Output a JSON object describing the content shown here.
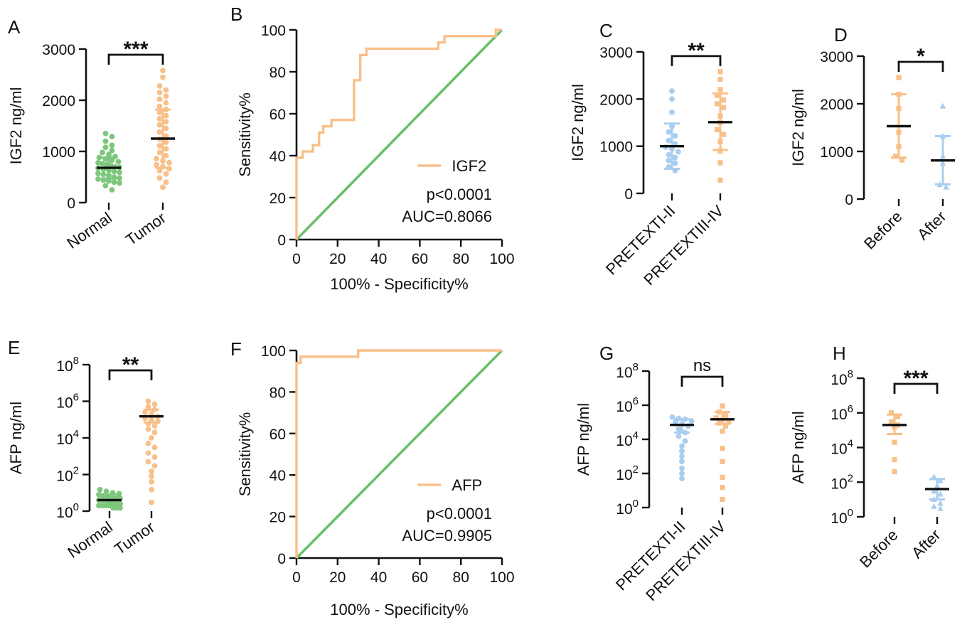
{
  "colors": {
    "orange": "#f8c08a",
    "green": "#7dc77c",
    "blue": "#a9cdef",
    "black": "#111111",
    "diag": "#6bbf6b"
  },
  "chart_data": [
    {
      "id": "A",
      "type": "scatter",
      "letter": "A",
      "ylabel": "IGF2 ng/ml",
      "yscale": "linear",
      "ylim": [
        0,
        3000
      ],
      "yticks": [
        0,
        1000,
        2000,
        3000
      ],
      "yticklabels": [
        "0",
        "1000",
        "2000",
        "3000"
      ],
      "categories": [
        "Normal",
        "Tumor"
      ],
      "significance": "***",
      "series": [
        {
          "name": "Normal",
          "color": "green",
          "shape": "circle",
          "mean": 680,
          "sd_low": 470,
          "sd_high": 880,
          "values": [
            1350,
            1290,
            1200,
            1120,
            1080,
            1020,
            980,
            940,
            900,
            880,
            850,
            830,
            800,
            780,
            760,
            740,
            720,
            700,
            690,
            670,
            650,
            630,
            610,
            590,
            570,
            550,
            530,
            500,
            480,
            460,
            440,
            420,
            400,
            380,
            330,
            250
          ]
        },
        {
          "name": "Tumor",
          "color": "orange",
          "shape": "circle",
          "mean": 1250,
          "sd_low": 680,
          "sd_high": 1820,
          "values": [
            2580,
            2450,
            2280,
            2200,
            2150,
            2080,
            2020,
            1950,
            1880,
            1820,
            1760,
            1700,
            1640,
            1580,
            1520,
            1450,
            1380,
            1300,
            1240,
            1180,
            1110,
            1050,
            980,
            920,
            860,
            820,
            780,
            740,
            700,
            660,
            620,
            560,
            480,
            400,
            300
          ]
        }
      ]
    },
    {
      "id": "B",
      "type": "line",
      "letter": "B",
      "xlabel": "100% - Specificity%",
      "ylabel": "Sensitivity%",
      "xlim": [
        0,
        100
      ],
      "ylim": [
        0,
        100
      ],
      "xticks": [
        0,
        20,
        40,
        60,
        80,
        100
      ],
      "xticklabels": [
        "0",
        "20",
        "40",
        "60",
        "80",
        "100"
      ],
      "yticks": [
        0,
        20,
        40,
        60,
        80,
        100
      ],
      "yticklabels": [
        "0",
        "20",
        "40",
        "60",
        "80",
        "100"
      ],
      "legend": "IGF2",
      "pvalue": "p<0.0001",
      "auc": "AUC=0.8066",
      "roc": [
        [
          0,
          0
        ],
        [
          0,
          39
        ],
        [
          3,
          39
        ],
        [
          3,
          42
        ],
        [
          8,
          42
        ],
        [
          8,
          45
        ],
        [
          11,
          45
        ],
        [
          11,
          51
        ],
        [
          13,
          51
        ],
        [
          13,
          54
        ],
        [
          17,
          54
        ],
        [
          17,
          57
        ],
        [
          28,
          57
        ],
        [
          28,
          76
        ],
        [
          31,
          76
        ],
        [
          31,
          88
        ],
        [
          34,
          88
        ],
        [
          34,
          91
        ],
        [
          69,
          91
        ],
        [
          69,
          94
        ],
        [
          72,
          94
        ],
        [
          72,
          97
        ],
        [
          97,
          97
        ],
        [
          97,
          100
        ],
        [
          100,
          100
        ]
      ],
      "diagonal": [
        [
          0,
          0
        ],
        [
          100,
          100
        ]
      ]
    },
    {
      "id": "C",
      "type": "scatter",
      "letter": "C",
      "ylabel": "IGF2 ng/ml",
      "yscale": "linear",
      "ylim": [
        0,
        3000
      ],
      "yticks": [
        0,
        1000,
        2000,
        3000
      ],
      "yticklabels": [
        "0",
        "1000",
        "2000",
        "3000"
      ],
      "categories": [
        "PRETEXTI-II",
        "PRETEXTIII-IV"
      ],
      "significance": "**",
      "series": [
        {
          "name": "PRETEXTI-II",
          "color": "blue",
          "shape": "circle",
          "mean": 1000,
          "sd_low": 520,
          "sd_high": 1480,
          "values": [
            2170,
            2000,
            1720,
            1420,
            1300,
            1220,
            1120,
            1050,
            980,
            940,
            880,
            820,
            760,
            700,
            640,
            560,
            480
          ]
        },
        {
          "name": "PRETEXTIII-IV",
          "color": "orange",
          "shape": "square",
          "mean": 1510,
          "sd_low": 920,
          "sd_high": 2120,
          "values": [
            2580,
            2420,
            2200,
            2080,
            1980,
            1900,
            1820,
            1640,
            1500,
            1350,
            1250,
            1100,
            900,
            650,
            280
          ]
        }
      ]
    },
    {
      "id": "D",
      "type": "scatter",
      "letter": "D",
      "ylabel": "IGF2 ng/ml",
      "yscale": "linear",
      "ylim": [
        0,
        3000
      ],
      "yticks": [
        0,
        1000,
        2000,
        3000
      ],
      "yticklabels": [
        "0",
        "1000",
        "2000",
        "3000"
      ],
      "categories": [
        "Before",
        "After"
      ],
      "significance": "*",
      "series": [
        {
          "name": "Before",
          "color": "orange",
          "shape": "square",
          "mean": 1530,
          "sd_low": 870,
          "sd_high": 2200,
          "values": [
            2550,
            2200,
            1900,
            1400,
            1100,
            900,
            820
          ]
        },
        {
          "name": "After",
          "color": "blue",
          "shape": "triangle",
          "mean": 810,
          "sd_low": 310,
          "sd_high": 1320,
          "values": [
            1950,
            1320,
            900,
            750,
            300,
            250
          ]
        }
      ]
    },
    {
      "id": "E",
      "type": "scatter",
      "letter": "E",
      "ylabel": "AFP ng/ml",
      "yscale": "log",
      "ylim": [
        1,
        100000000
      ],
      "yticks": [
        1,
        100,
        10000,
        1000000,
        100000000
      ],
      "yticklabels": [
        {
          "base": "10",
          "exp": "0"
        },
        {
          "base": "10",
          "exp": "2"
        },
        {
          "base": "10",
          "exp": "4"
        },
        {
          "base": "10",
          "exp": "6"
        },
        {
          "base": "10",
          "exp": "8"
        }
      ],
      "categories": [
        "Normal",
        "Tumor"
      ],
      "significance": "**",
      "series": [
        {
          "name": "Normal",
          "color": "green",
          "shape": "circle",
          "mean": 4,
          "sd_low": 2,
          "sd_high": 8,
          "values": [
            15,
            12,
            10,
            9,
            8,
            7,
            6,
            6,
            5,
            5,
            5,
            4,
            4,
            4,
            4,
            3,
            3,
            3,
            3,
            3,
            2.5,
            2.5,
            2,
            2,
            2,
            2,
            1.5,
            1.5,
            1.5
          ]
        },
        {
          "name": "Tumor",
          "color": "orange",
          "shape": "circle",
          "mean": 150000,
          "sd_low": 70000,
          "sd_high": 350000,
          "values": [
            1000000,
            700000,
            500000,
            350000,
            250000,
            200000,
            150000,
            120000,
            100000,
            80000,
            60000,
            45000,
            30000,
            20000,
            10000,
            5000,
            3000,
            1500,
            900,
            500,
            300,
            150,
            80,
            40,
            15,
            3
          ]
        }
      ]
    },
    {
      "id": "F",
      "type": "line",
      "letter": "F",
      "xlabel": "100% - Specificity%",
      "ylabel": "Sensitivity%",
      "xlim": [
        0,
        100
      ],
      "ylim": [
        0,
        100
      ],
      "xticks": [
        0,
        20,
        40,
        60,
        80,
        100
      ],
      "xticklabels": [
        "0",
        "20",
        "40",
        "60",
        "80",
        "100"
      ],
      "yticks": [
        0,
        20,
        40,
        60,
        80,
        100
      ],
      "yticklabels": [
        "0",
        "20",
        "40",
        "60",
        "80",
        "100"
      ],
      "legend": "AFP",
      "pvalue": "p<0.0001",
      "auc": "AUC=0.9905",
      "roc": [
        [
          0,
          0
        ],
        [
          0,
          94
        ],
        [
          2,
          94
        ],
        [
          2,
          97
        ],
        [
          30,
          97
        ],
        [
          30,
          100
        ],
        [
          100,
          100
        ]
      ],
      "diagonal": [
        [
          0,
          0
        ],
        [
          100,
          100
        ]
      ]
    },
    {
      "id": "G",
      "type": "scatter",
      "letter": "G",
      "ylabel": "AFP ng/ml",
      "yscale": "log",
      "ylim": [
        1,
        100000000
      ],
      "yticks": [
        1,
        100,
        10000,
        1000000,
        100000000
      ],
      "yticklabels": [
        {
          "base": "10",
          "exp": "0"
        },
        {
          "base": "10",
          "exp": "2"
        },
        {
          "base": "10",
          "exp": "4"
        },
        {
          "base": "10",
          "exp": "6"
        },
        {
          "base": "10",
          "exp": "8"
        }
      ],
      "categories": [
        "PRETEXTI-II",
        "PRETEXTIII-IV"
      ],
      "significance": "ns",
      "series": [
        {
          "name": "PRETEXTI-II",
          "color": "blue",
          "shape": "circle",
          "mean": 70000,
          "sd_low": 25000,
          "sd_high": 150000,
          "values": [
            200000,
            170000,
            150000,
            120000,
            100000,
            80000,
            60000,
            40000,
            25000,
            15000,
            8000,
            4000,
            2000,
            1000,
            500,
            200,
            100,
            50
          ]
        },
        {
          "name": "PRETEXTIII-IV",
          "color": "orange",
          "shape": "square",
          "mean": 150000,
          "sd_low": 80000,
          "sd_high": 400000,
          "values": [
            900000,
            400000,
            250000,
            180000,
            140000,
            110000,
            90000,
            60000,
            30000,
            3000,
            500,
            60,
            15,
            3
          ]
        }
      ]
    },
    {
      "id": "H",
      "type": "scatter",
      "letter": "H",
      "ylabel": "AFP ng/ml",
      "yscale": "log",
      "ylim": [
        1,
        100000000
      ],
      "yticks": [
        1,
        100,
        10000,
        1000000,
        100000000
      ],
      "yticklabels": [
        {
          "base": "10",
          "exp": "0"
        },
        {
          "base": "10",
          "exp": "2"
        },
        {
          "base": "10",
          "exp": "4"
        },
        {
          "base": "10",
          "exp": "6"
        },
        {
          "base": "10",
          "exp": "8"
        }
      ],
      "categories": [
        "Before",
        "After"
      ],
      "significance": "***",
      "series": [
        {
          "name": "Before",
          "color": "orange",
          "shape": "square",
          "mean": 200000,
          "sd_low": 60000,
          "sd_high": 800000,
          "values": [
            1000000,
            600000,
            300000,
            200000,
            150000,
            20000,
            2000,
            400
          ]
        },
        {
          "name": "After",
          "color": "blue",
          "shape": "triangle",
          "mean": 40,
          "sd_low": 10,
          "sd_high": 150,
          "values": [
            200,
            120,
            60,
            30,
            20,
            10,
            6,
            4,
            3
          ]
        }
      ]
    }
  ]
}
